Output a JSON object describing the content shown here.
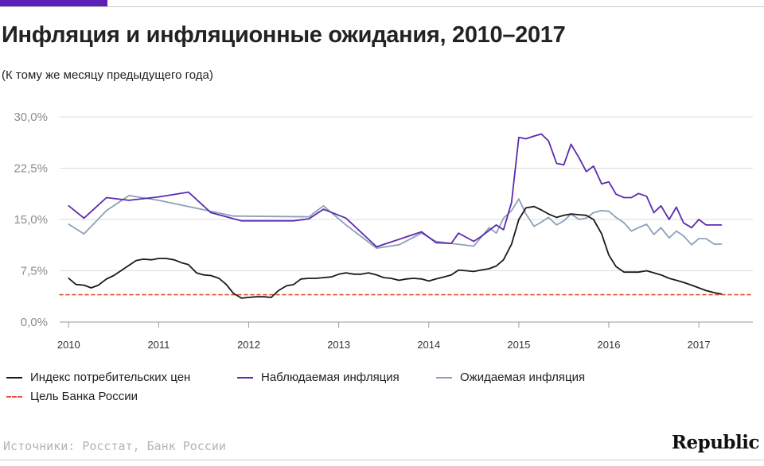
{
  "accent_color": "#5b21b6",
  "title": "Инфляция и инфляционные ожидания, 2010–2017",
  "subtitle": "(К тому же месяцу предыдущего года)",
  "source": "Источники: Росстат, Банк России",
  "brand": "Republic",
  "legend": [
    {
      "label": "Индекс потребительских цен",
      "color": "#1a1a1a",
      "style": "solid"
    },
    {
      "label": "Наблюдаемая инфляция",
      "color": "#5b2bb0",
      "style": "solid"
    },
    {
      "label": "Ожидаемая инфляция",
      "color": "#8ea0b8",
      "style": "solid"
    },
    {
      "label": "Цель Банка России",
      "color": "#e0533a",
      "style": "dashed"
    }
  ],
  "chart_data": {
    "type": "line",
    "title": "Инфляция и инфляционные ожидания, 2010–2017",
    "subtitle": "(К тому же месяцу предыдущего года)",
    "xlabel": "",
    "ylabel": "",
    "xlim": [
      2009.9,
      2017.6
    ],
    "ylim": [
      0,
      30
    ],
    "x_ticks": [
      2010,
      2011,
      2012,
      2013,
      2014,
      2015,
      2016,
      2017
    ],
    "x_tick_labels": [
      "2010",
      "2011",
      "2012",
      "2013",
      "2014",
      "2015",
      "2016",
      "2017"
    ],
    "y_ticks": [
      0,
      7.5,
      15,
      22.5,
      30
    ],
    "y_tick_labels": [
      "0,0%",
      "7,5%",
      "15,0%",
      "22,5%",
      "30,0%"
    ],
    "grid": true,
    "legend_position": "bottom",
    "series": [
      {
        "name": "Индекс потребительских цен",
        "color": "#1a1a1a",
        "style": "solid",
        "x": [
          2010.0,
          2010.08,
          2010.17,
          2010.25,
          2010.33,
          2010.42,
          2010.5,
          2010.58,
          2010.67,
          2010.75,
          2010.83,
          2010.92,
          2011.0,
          2011.08,
          2011.17,
          2011.25,
          2011.33,
          2011.42,
          2011.5,
          2011.58,
          2011.67,
          2011.75,
          2011.83,
          2011.92,
          2012.0,
          2012.08,
          2012.17,
          2012.25,
          2012.33,
          2012.42,
          2012.5,
          2012.58,
          2012.67,
          2012.75,
          2012.83,
          2012.92,
          2013.0,
          2013.08,
          2013.17,
          2013.25,
          2013.33,
          2013.42,
          2013.5,
          2013.58,
          2013.67,
          2013.75,
          2013.83,
          2013.92,
          2014.0,
          2014.08,
          2014.17,
          2014.25,
          2014.33,
          2014.42,
          2014.5,
          2014.58,
          2014.67,
          2014.75,
          2014.83,
          2014.92,
          2015.0,
          2015.08,
          2015.17,
          2015.25,
          2015.33,
          2015.42,
          2015.5,
          2015.58,
          2015.67,
          2015.75,
          2015.83,
          2015.92,
          2016.0,
          2016.08,
          2016.17,
          2016.25,
          2016.33,
          2016.42,
          2016.5,
          2016.58,
          2016.67,
          2016.75,
          2016.83,
          2016.92,
          2017.0,
          2017.08,
          2017.17,
          2017.25
        ],
        "values": [
          6.4,
          5.5,
          5.4,
          5.0,
          5.4,
          6.3,
          6.8,
          7.5,
          8.3,
          9.0,
          9.2,
          9.1,
          9.3,
          9.3,
          9.1,
          8.7,
          8.4,
          7.2,
          6.9,
          6.8,
          6.4,
          5.5,
          4.2,
          3.5,
          3.6,
          3.7,
          3.7,
          3.6,
          4.6,
          5.3,
          5.5,
          6.3,
          6.4,
          6.4,
          6.5,
          6.6,
          7.0,
          7.2,
          7.0,
          7.0,
          7.2,
          6.9,
          6.5,
          6.4,
          6.1,
          6.3,
          6.4,
          6.3,
          6.0,
          6.3,
          6.6,
          6.9,
          7.6,
          7.5,
          7.4,
          7.6,
          7.8,
          8.2,
          9.1,
          11.4,
          15.0,
          16.7,
          16.9,
          16.4,
          15.8,
          15.3,
          15.6,
          15.8,
          15.7,
          15.6,
          15.0,
          12.9,
          9.8,
          8.1,
          7.3,
          7.3,
          7.3,
          7.5,
          7.2,
          6.9,
          6.4,
          6.1,
          5.8,
          5.4,
          5.0,
          4.6,
          4.3,
          4.1
        ]
      },
      {
        "name": "Наблюдаемая инфляция",
        "color": "#5b2bb0",
        "style": "solid",
        "x": [
          2010.0,
          2010.17,
          2010.42,
          2010.67,
          2011.0,
          2011.33,
          2011.58,
          2011.92,
          2012.5,
          2012.67,
          2012.83,
          2013.08,
          2013.42,
          2013.92,
          2014.08,
          2014.25,
          2014.33,
          2014.5,
          2014.58,
          2014.75,
          2014.83,
          2014.92,
          2015.0,
          2015.08,
          2015.17,
          2015.25,
          2015.33,
          2015.42,
          2015.5,
          2015.58,
          2015.67,
          2015.75,
          2015.83,
          2015.92,
          2016.0,
          2016.08,
          2016.17,
          2016.25,
          2016.33,
          2016.42,
          2016.5,
          2016.58,
          2016.67,
          2016.75,
          2016.83,
          2016.92,
          2017.0,
          2017.08,
          2017.17,
          2017.25
        ],
        "values": [
          17.0,
          15.2,
          18.2,
          17.8,
          18.3,
          19.0,
          16.0,
          14.8,
          14.8,
          15.1,
          16.5,
          15.2,
          11.0,
          13.2,
          11.6,
          11.5,
          13.0,
          11.8,
          12.5,
          14.2,
          13.5,
          17.5,
          27.0,
          26.8,
          27.2,
          27.5,
          26.5,
          23.2,
          23.0,
          26.0,
          24.0,
          22.0,
          22.8,
          20.2,
          20.5,
          18.7,
          18.2,
          18.2,
          18.8,
          18.4,
          16.0,
          17.0,
          15.0,
          16.8,
          14.5,
          13.8,
          15.0,
          14.2,
          14.2,
          14.2
        ]
      },
      {
        "name": "Ожидаемая инфляция",
        "color": "#8ea0b8",
        "style": "solid",
        "x": [
          2010.0,
          2010.17,
          2010.42,
          2010.67,
          2011.0,
          2011.58,
          2011.83,
          2012.67,
          2012.83,
          2013.08,
          2013.42,
          2013.67,
          2013.92,
          2014.08,
          2014.25,
          2014.5,
          2014.67,
          2014.75,
          2014.83,
          2014.92,
          2015.0,
          2015.08,
          2015.17,
          2015.25,
          2015.33,
          2015.42,
          2015.5,
          2015.58,
          2015.67,
          2015.75,
          2015.83,
          2015.92,
          2016.0,
          2016.08,
          2016.17,
          2016.25,
          2016.33,
          2016.42,
          2016.5,
          2016.58,
          2016.67,
          2016.75,
          2016.83,
          2016.92,
          2017.0,
          2017.08,
          2017.17,
          2017.25
        ],
        "values": [
          14.3,
          12.9,
          16.3,
          18.5,
          17.8,
          16.2,
          15.5,
          15.4,
          17.0,
          14.2,
          10.8,
          11.3,
          13.0,
          11.8,
          11.5,
          11.1,
          13.8,
          13.0,
          15.2,
          16.3,
          18.0,
          15.8,
          14.0,
          14.6,
          15.3,
          14.2,
          14.8,
          15.8,
          15.0,
          15.2,
          16.0,
          16.3,
          16.2,
          15.3,
          14.5,
          13.3,
          13.8,
          14.3,
          12.8,
          13.8,
          12.3,
          13.3,
          12.6,
          11.3,
          12.2,
          12.2,
          11.4,
          11.4
        ]
      },
      {
        "name": "Цель Банка России",
        "color": "#e0533a",
        "style": "dashed",
        "x": [
          2009.9,
          2017.6
        ],
        "values": [
          4.0,
          4.0
        ]
      }
    ]
  }
}
